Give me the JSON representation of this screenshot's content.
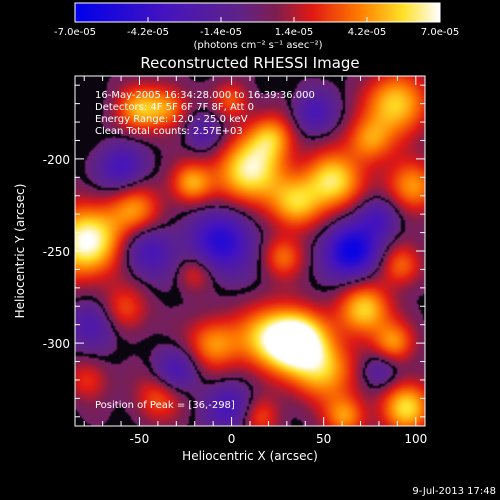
{
  "chart_data": {
    "type": "heatmap",
    "title": "Reconstructed RHESSI Image",
    "xlabel": "Heliocentric X (arcsec)",
    "ylabel": "Heliocentric Y (arcsec)",
    "xlim": [
      -85,
      105
    ],
    "ylim": [
      -345,
      -155
    ],
    "x_ticks": [
      -50,
      0,
      50,
      100
    ],
    "y_ticks": [
      -200,
      -250,
      -300
    ],
    "colorbar": {
      "ticks": [
        "-7.0e-05",
        "-4.2e-05",
        "-1.4e-05",
        "1.4e-05",
        "4.2e-05",
        "7.0e-05"
      ],
      "unit_label": "(photons cm⁻² s⁻¹ asec⁻²)",
      "range": [
        -7e-05,
        7e-05
      ]
    },
    "annotations": [
      "16-May-2005 16:34:28.000 to 16:39:36.000",
      "Detectors: 4F 5F 6F 7F 8F, Att 0",
      "Energy Range: 12.0 - 25.0 keV",
      "Clean    Total counts: 2.57E+03",
      "Position of Peak = [36,-298]"
    ],
    "blobs": [
      {
        "x": -79,
        "y": -245,
        "sigma": 14,
        "value": 7e-05
      },
      {
        "x": -52,
        "y": -228,
        "sigma": 10,
        "value": 4e-05
      },
      {
        "x": -50,
        "y": -173,
        "sigma": 9,
        "value": 4.5e-05
      },
      {
        "x": -34,
        "y": -172,
        "sigma": 8,
        "value": 3.5e-05
      },
      {
        "x": -22,
        "y": -213,
        "sigma": 8,
        "value": 4.5e-05
      },
      {
        "x": 0,
        "y": -168,
        "sigma": 7,
        "value": 3e-05
      },
      {
        "x": 10,
        "y": -207,
        "sigma": 13,
        "value": 6.5e-05
      },
      {
        "x": 22,
        "y": -188,
        "sigma": 9,
        "value": 4e-05
      },
      {
        "x": 28,
        "y": -253,
        "sigma": 8,
        "value": 3.5e-05
      },
      {
        "x": 35,
        "y": -225,
        "sigma": 10,
        "value": 4.5e-05
      },
      {
        "x": 55,
        "y": -212,
        "sigma": 11,
        "value": 6e-05
      },
      {
        "x": 75,
        "y": -190,
        "sigma": 9,
        "value": 4e-05
      },
      {
        "x": 90,
        "y": -170,
        "sigma": 12,
        "value": 5.5e-05
      },
      {
        "x": 98,
        "y": -215,
        "sigma": 10,
        "value": 4.5e-05
      },
      {
        "x": 92,
        "y": -258,
        "sigma": 8,
        "value": 3.5e-05
      },
      {
        "x": -20,
        "y": -262,
        "sigma": 7,
        "value": 2.5e-05
      },
      {
        "x": -58,
        "y": -282,
        "sigma": 9,
        "value": 3e-05
      },
      {
        "x": -10,
        "y": -300,
        "sigma": 10,
        "value": 4e-05
      },
      {
        "x": 20,
        "y": -298,
        "sigma": 13,
        "value": 5e-05
      },
      {
        "x": 36,
        "y": -298,
        "sigma": 11,
        "value": 7e-05
      },
      {
        "x": 50,
        "y": -315,
        "sigma": 12,
        "value": 5e-05
      },
      {
        "x": 72,
        "y": -282,
        "sigma": 10,
        "value": 5.5e-05
      },
      {
        "x": 88,
        "y": -300,
        "sigma": 8,
        "value": 4e-05
      },
      {
        "x": 95,
        "y": -335,
        "sigma": 10,
        "value": 5.5e-05
      },
      {
        "x": 62,
        "y": -340,
        "sigma": 8,
        "value": 4e-05
      },
      {
        "x": 15,
        "y": -340,
        "sigma": 8,
        "value": 3e-05
      },
      {
        "x": -40,
        "y": -330,
        "sigma": 9,
        "value": 3e-05
      },
      {
        "x": -78,
        "y": -320,
        "sigma": 8,
        "value": 2.5e-05
      },
      {
        "x": -60,
        "y": -205,
        "sigma": 9,
        "value": -3.5e-05
      },
      {
        "x": -5,
        "y": -245,
        "sigma": 12,
        "value": -5e-05
      },
      {
        "x": -45,
        "y": -250,
        "sigma": 10,
        "value": -3.5e-05
      },
      {
        "x": 65,
        "y": -250,
        "sigma": 10,
        "value": -6.5e-05
      },
      {
        "x": 45,
        "y": -175,
        "sigma": 8,
        "value": -3e-05
      },
      {
        "x": 80,
        "y": -232,
        "sigma": 8,
        "value": -3e-05
      },
      {
        "x": -75,
        "y": -290,
        "sigma": 9,
        "value": -3e-05
      },
      {
        "x": -30,
        "y": -315,
        "sigma": 8,
        "value": -3e-05
      },
      {
        "x": 0,
        "y": -335,
        "sigma": 9,
        "value": -3.5e-05
      },
      {
        "x": 80,
        "y": -315,
        "sigma": 7,
        "value": -2.5e-05
      },
      {
        "x": -15,
        "y": -185,
        "sigma": 7,
        "value": -2.5e-05
      }
    ]
  },
  "footer": {
    "timestamp": "9-Jul-2013 17:48"
  }
}
